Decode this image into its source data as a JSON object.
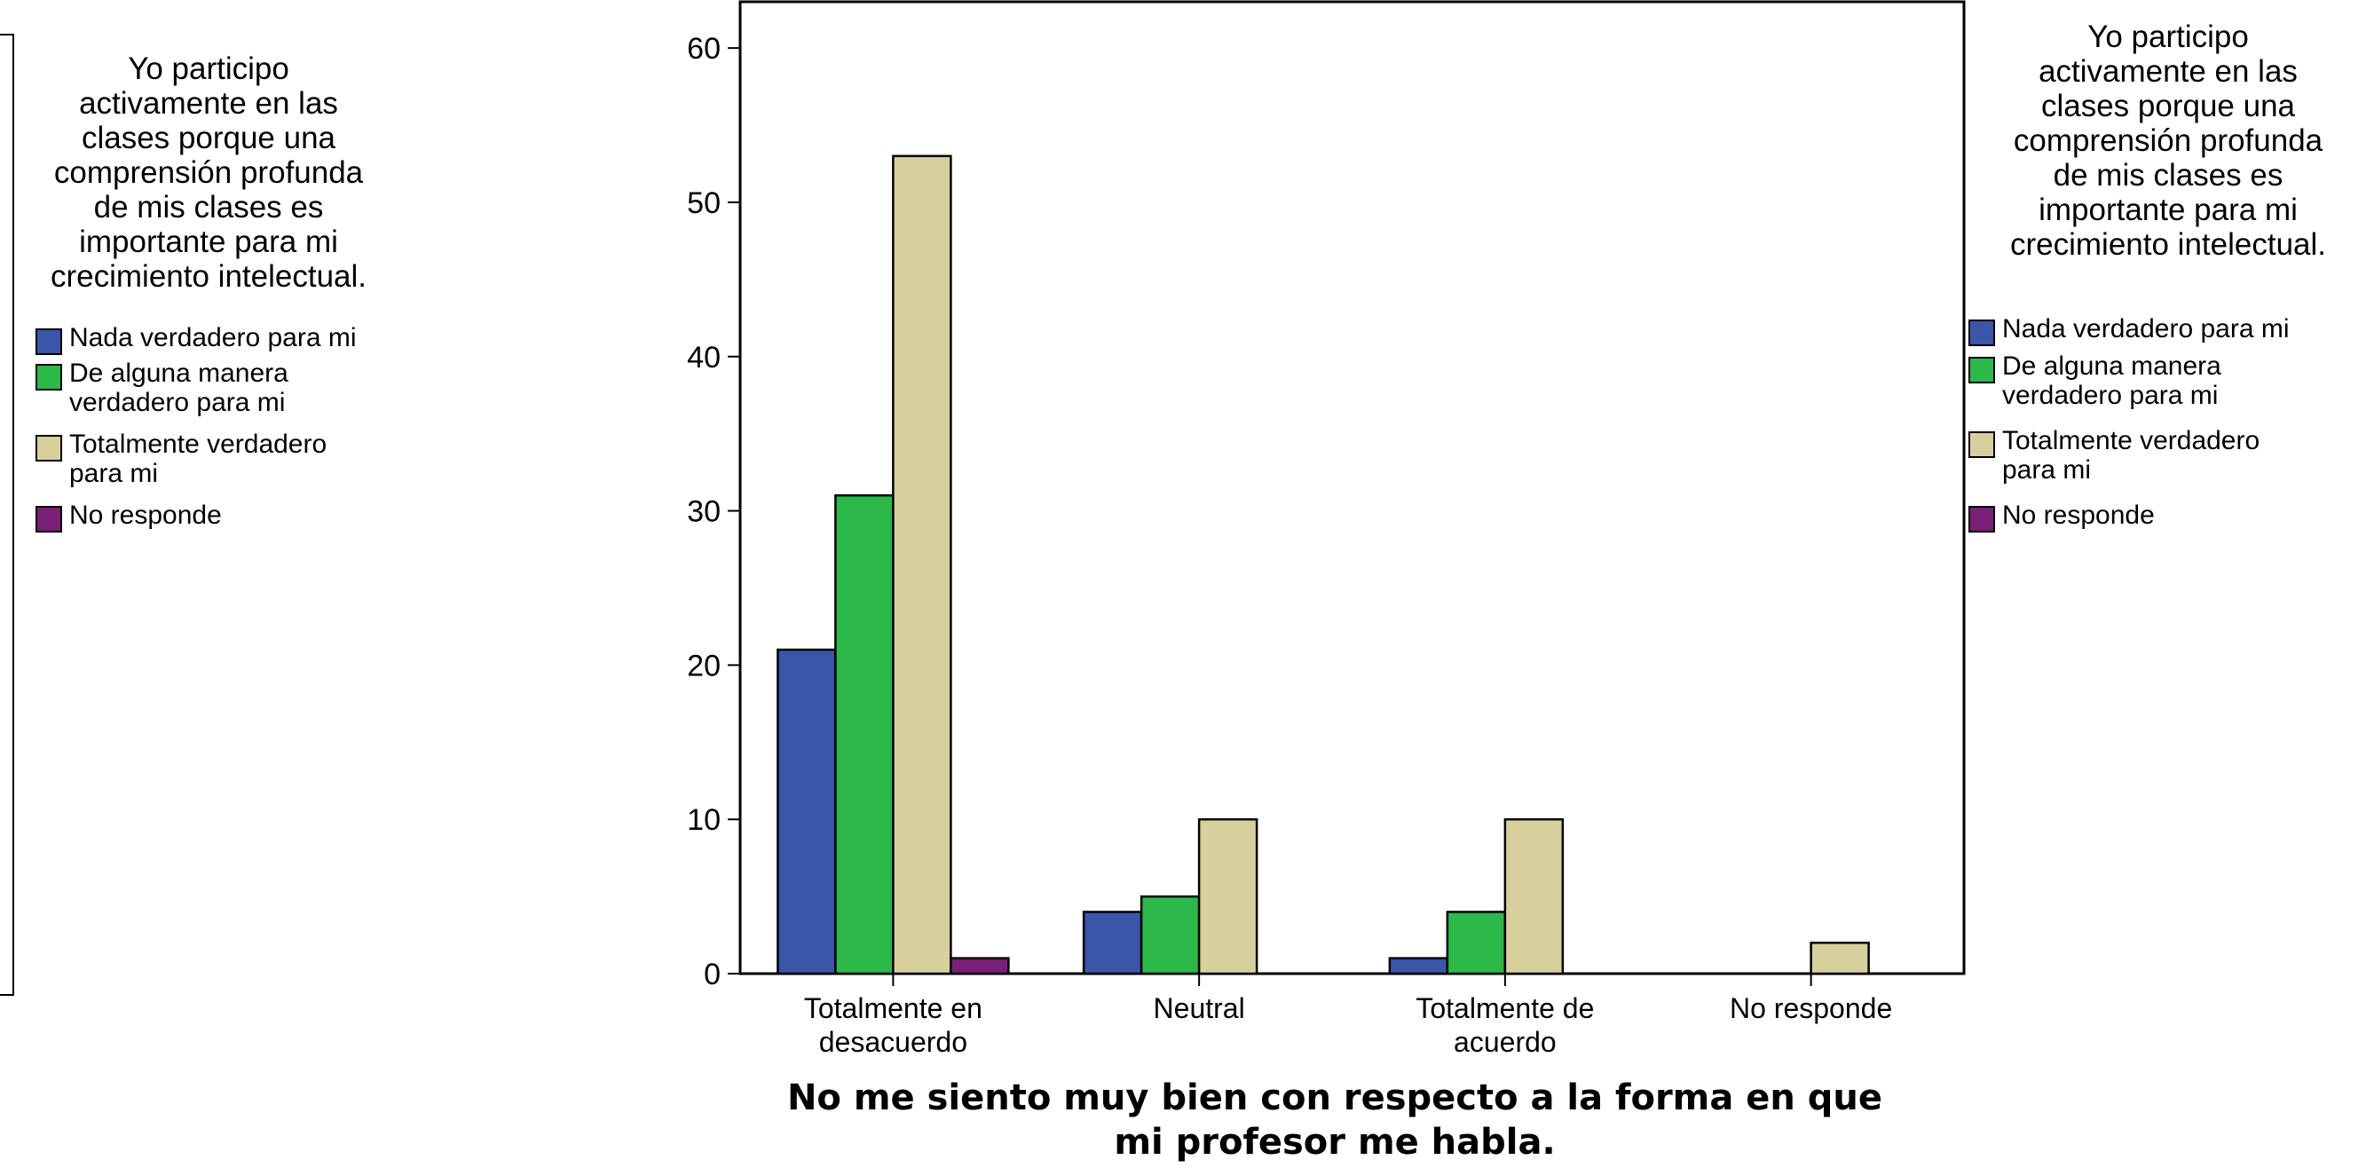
{
  "chart_data": {
    "type": "bar",
    "xlabel": "No me siento muy bien con respecto a la forma en que\nmi profesor me habla.",
    "ylabel": "",
    "ylim": [
      0,
      63
    ],
    "yticks": [
      0,
      10,
      20,
      30,
      40,
      50,
      60
    ],
    "categories": [
      "Totalmente en\ndesacuerdo",
      "Neutral",
      "Totalmente de\nacuerdo",
      "No responde"
    ],
    "legend_title": "Yo participo\nactivamente en las\nclases porque una\ncomprensión profunda\nde mis clases es\nimportante para mi\ncrecimiento intelectual.",
    "legend_placement": "right",
    "grid": false,
    "series": [
      {
        "name": "Nada verdadero para mi",
        "color": "#3b56a8",
        "values": [
          21,
          4,
          1,
          0
        ]
      },
      {
        "name": "De alguna manera\nverdadero para mi",
        "color": "#2db84a",
        "values": [
          31,
          5,
          4,
          0
        ]
      },
      {
        "name": "Totalmente verdadero\npara mi",
        "color": "#d8d09c",
        "values": [
          53,
          10,
          10,
          2
        ]
      },
      {
        "name": "No responde",
        "color": "#7a1f77",
        "values": [
          1,
          0,
          0,
          0
        ]
      }
    ]
  }
}
